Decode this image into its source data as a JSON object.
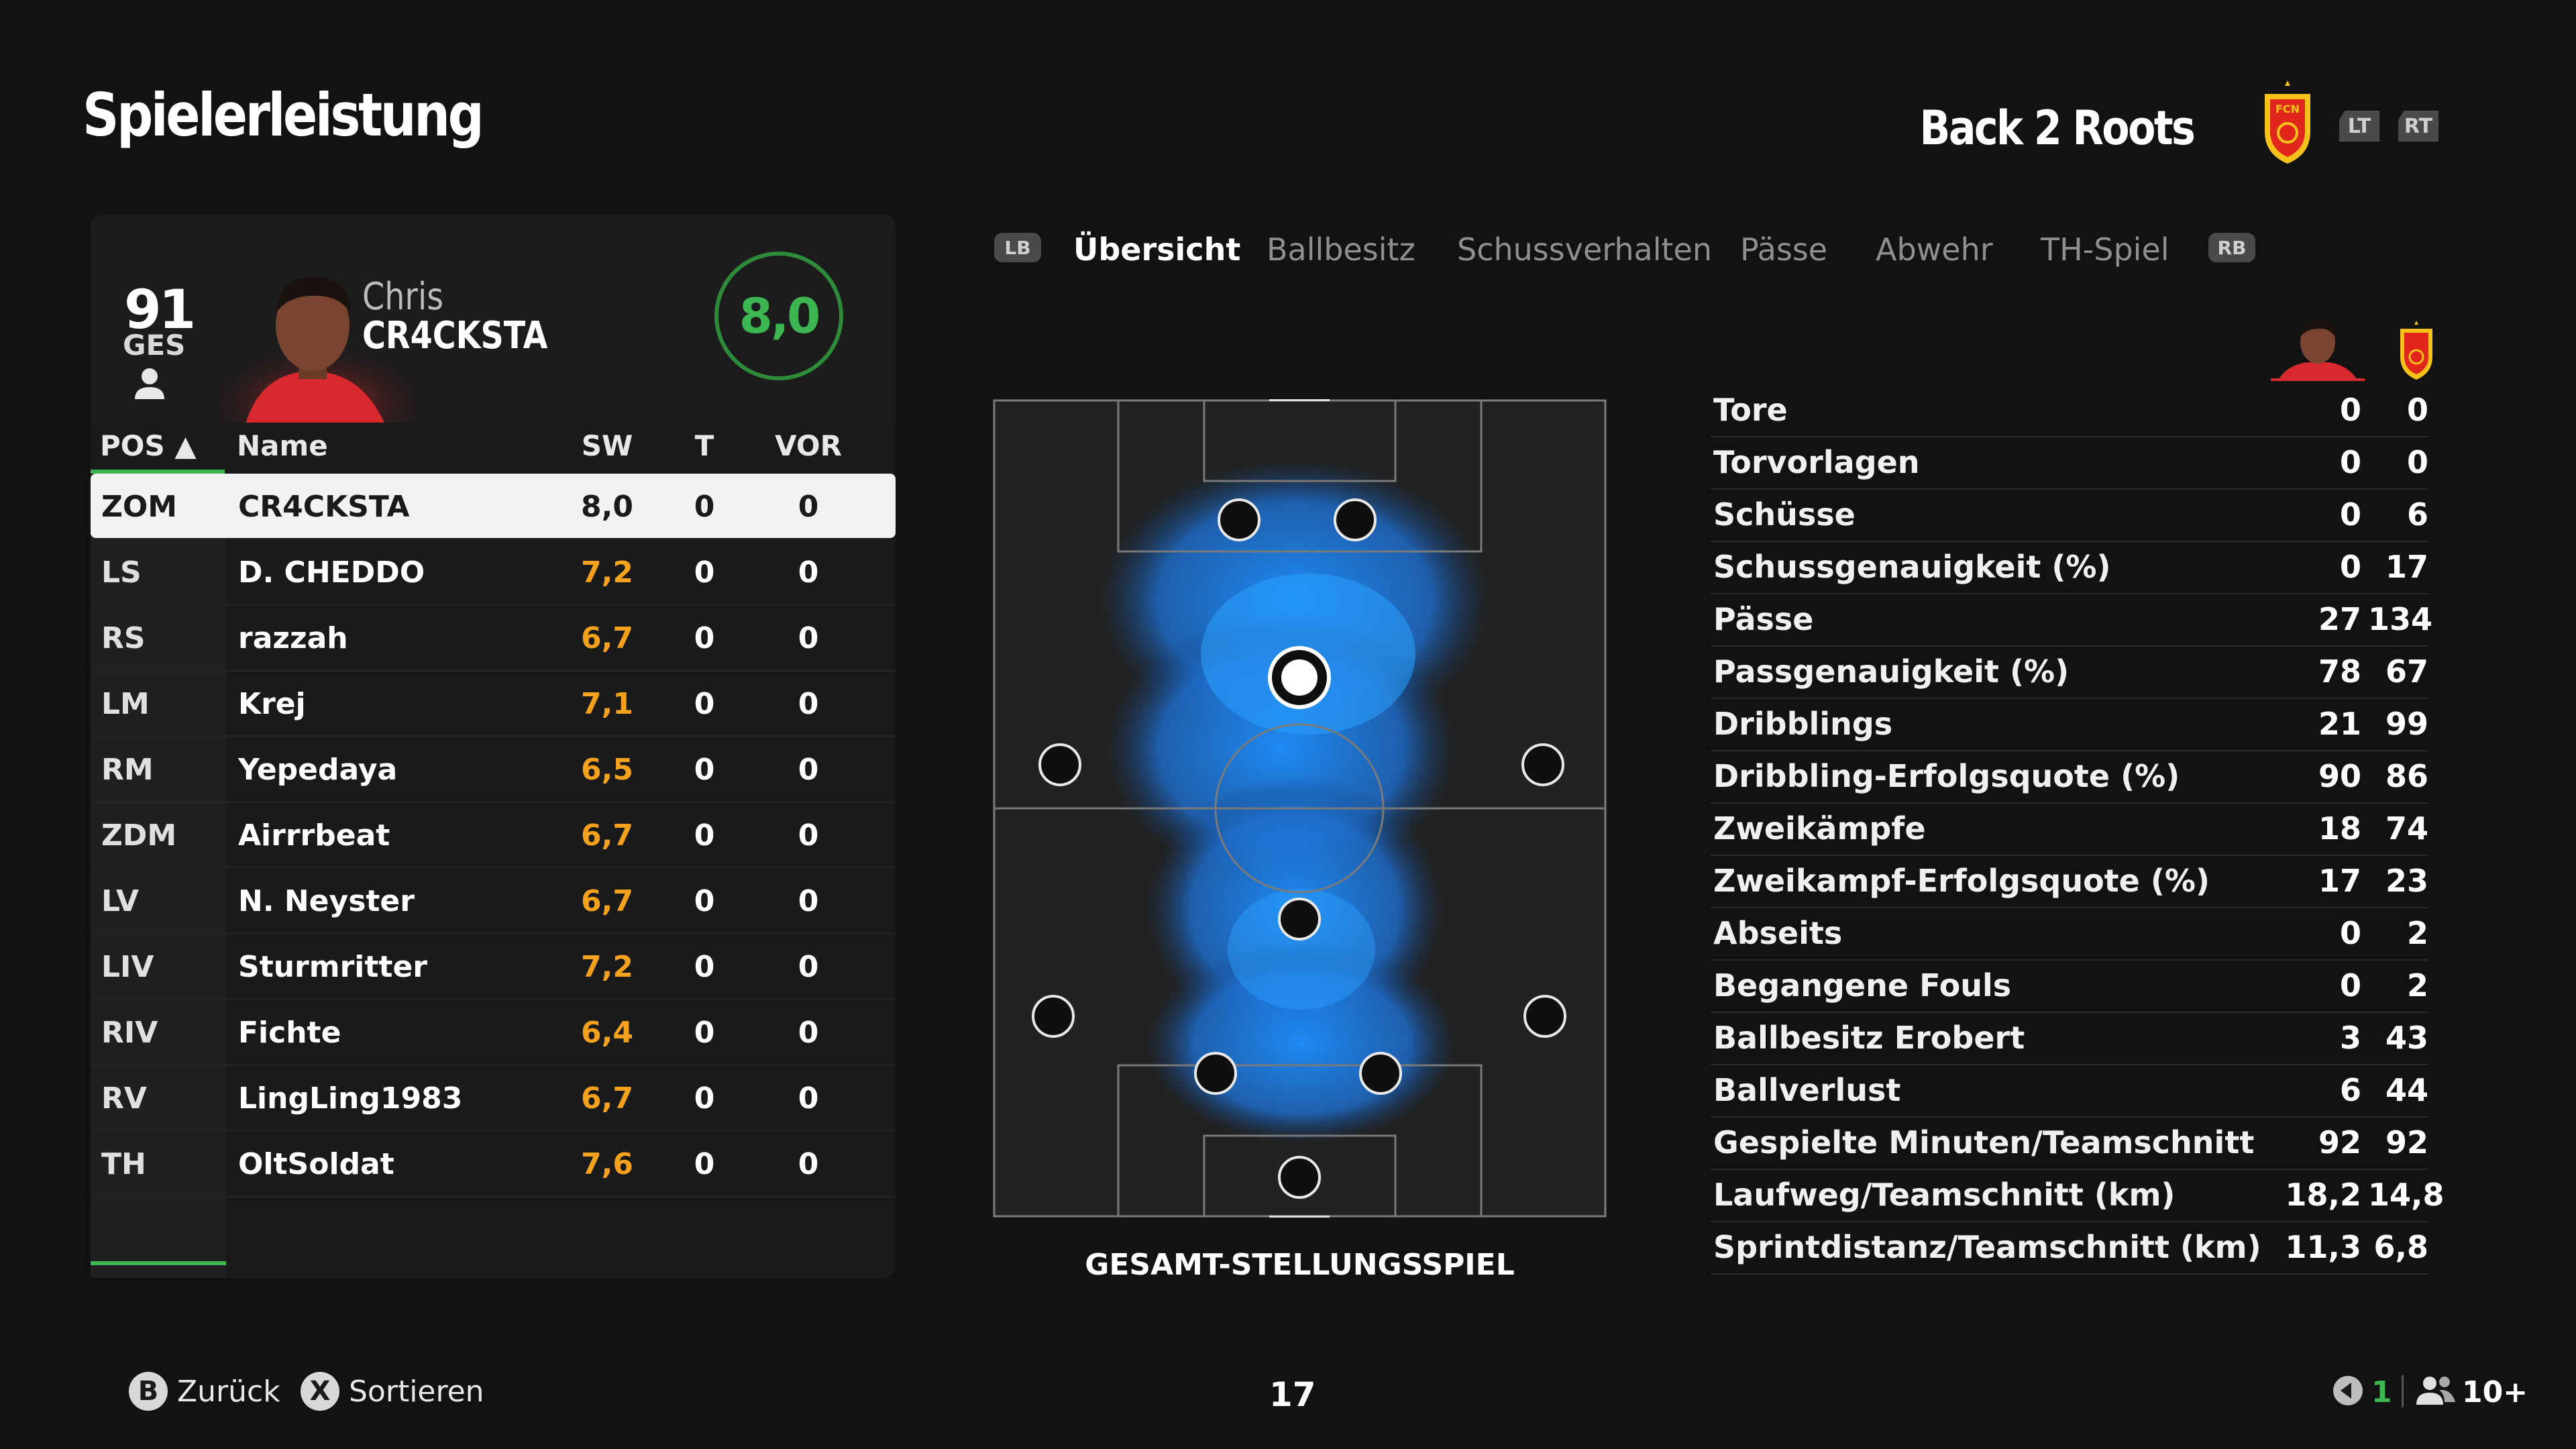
{
  "header": {
    "title": "Spielerleistung",
    "team_name": "Back 2 Roots",
    "lt_label": "LT",
    "rt_label": "RT",
    "badge_text": "FCN"
  },
  "player": {
    "overall": "91",
    "overall_label": "GES",
    "first_name": "Chris",
    "last_name": "CR4CKSTA",
    "match_rating": "8,0"
  },
  "table": {
    "headers": {
      "pos": "POS ▲",
      "name": "Name",
      "sw": "SW",
      "t": "T",
      "vor": "VOR"
    },
    "rows": [
      {
        "pos": "ZOM",
        "name": "CR4CKSTA",
        "sw": "8,0",
        "t": "0",
        "vor": "0"
      },
      {
        "pos": "LS",
        "name": "D. CHEDDO",
        "sw": "7,2",
        "t": "0",
        "vor": "0"
      },
      {
        "pos": "RS",
        "name": "razzah",
        "sw": "6,7",
        "t": "0",
        "vor": "0"
      },
      {
        "pos": "LM",
        "name": "Krej",
        "sw": "7,1",
        "t": "0",
        "vor": "0"
      },
      {
        "pos": "RM",
        "name": "Yepedaya",
        "sw": "6,5",
        "t": "0",
        "vor": "0"
      },
      {
        "pos": "ZDM",
        "name": "Airrrbeat",
        "sw": "6,7",
        "t": "0",
        "vor": "0"
      },
      {
        "pos": "LV",
        "name": "N. Neyster",
        "sw": "6,7",
        "t": "0",
        "vor": "0"
      },
      {
        "pos": "LIV",
        "name": "Sturmritter",
        "sw": "7,2",
        "t": "0",
        "vor": "0"
      },
      {
        "pos": "RIV",
        "name": "Fichte",
        "sw": "6,4",
        "t": "0",
        "vor": "0"
      },
      {
        "pos": "RV",
        "name": "LingLing1983",
        "sw": "6,7",
        "t": "0",
        "vor": "0"
      },
      {
        "pos": "TH",
        "name": "OltSoldat",
        "sw": "7,6",
        "t": "0",
        "vor": "0"
      }
    ]
  },
  "tabs": {
    "lb": "LB",
    "rb": "RB",
    "items": [
      "Übersicht",
      "Ballbesitz",
      "Schussverhalten",
      "Pässe",
      "Abwehr",
      "TH-Spiel"
    ]
  },
  "pitch": {
    "caption": "GESAMT-STELLUNGSSPIEL"
  },
  "stats": [
    {
      "label": "Tore",
      "player": "0",
      "team": "0"
    },
    {
      "label": "Torvorlagen",
      "player": "0",
      "team": "0"
    },
    {
      "label": "Schüsse",
      "player": "0",
      "team": "6"
    },
    {
      "label": "Schussgenauigkeit (%)",
      "player": "0",
      "team": "17"
    },
    {
      "label": "Pässe",
      "player": "27",
      "team": "134"
    },
    {
      "label": "Passgenauigkeit (%)",
      "player": "78",
      "team": "67"
    },
    {
      "label": "Dribblings",
      "player": "21",
      "team": "99"
    },
    {
      "label": "Dribbling-Erfolgsquote (%)",
      "player": "90",
      "team": "86"
    },
    {
      "label": "Zweikämpfe",
      "player": "18",
      "team": "74"
    },
    {
      "label": "Zweikampf-Erfolgsquote (%)",
      "player": "17",
      "team": "23"
    },
    {
      "label": "Abseits",
      "player": "0",
      "team": "2"
    },
    {
      "label": "Begangene Fouls",
      "player": "0",
      "team": "2"
    },
    {
      "label": "Ballbesitz Erobert",
      "player": "3",
      "team": "43"
    },
    {
      "label": "Ballverlust",
      "player": "6",
      "team": "44"
    },
    {
      "label": "Gespielte Minuten/Teamschnitt",
      "player": "92",
      "team": "92"
    },
    {
      "label": "Laufweg/Teamschnitt (km)",
      "player": "18,2",
      "team": "14,8"
    },
    {
      "label": "Sprintdistanz/Teamschnitt (km)",
      "player": "11,3",
      "team": "6,8"
    }
  ],
  "footer": {
    "back_key": "B",
    "back_label": "Zurück",
    "sort_key": "X",
    "sort_label": "Sortieren",
    "page_number": "17",
    "mic_count": "1",
    "party_count": "10+"
  },
  "colors": {
    "accent_green": "#3cb650",
    "rating_orange": "#f4a21e",
    "heatmap_blue": "#1e90ff"
  }
}
